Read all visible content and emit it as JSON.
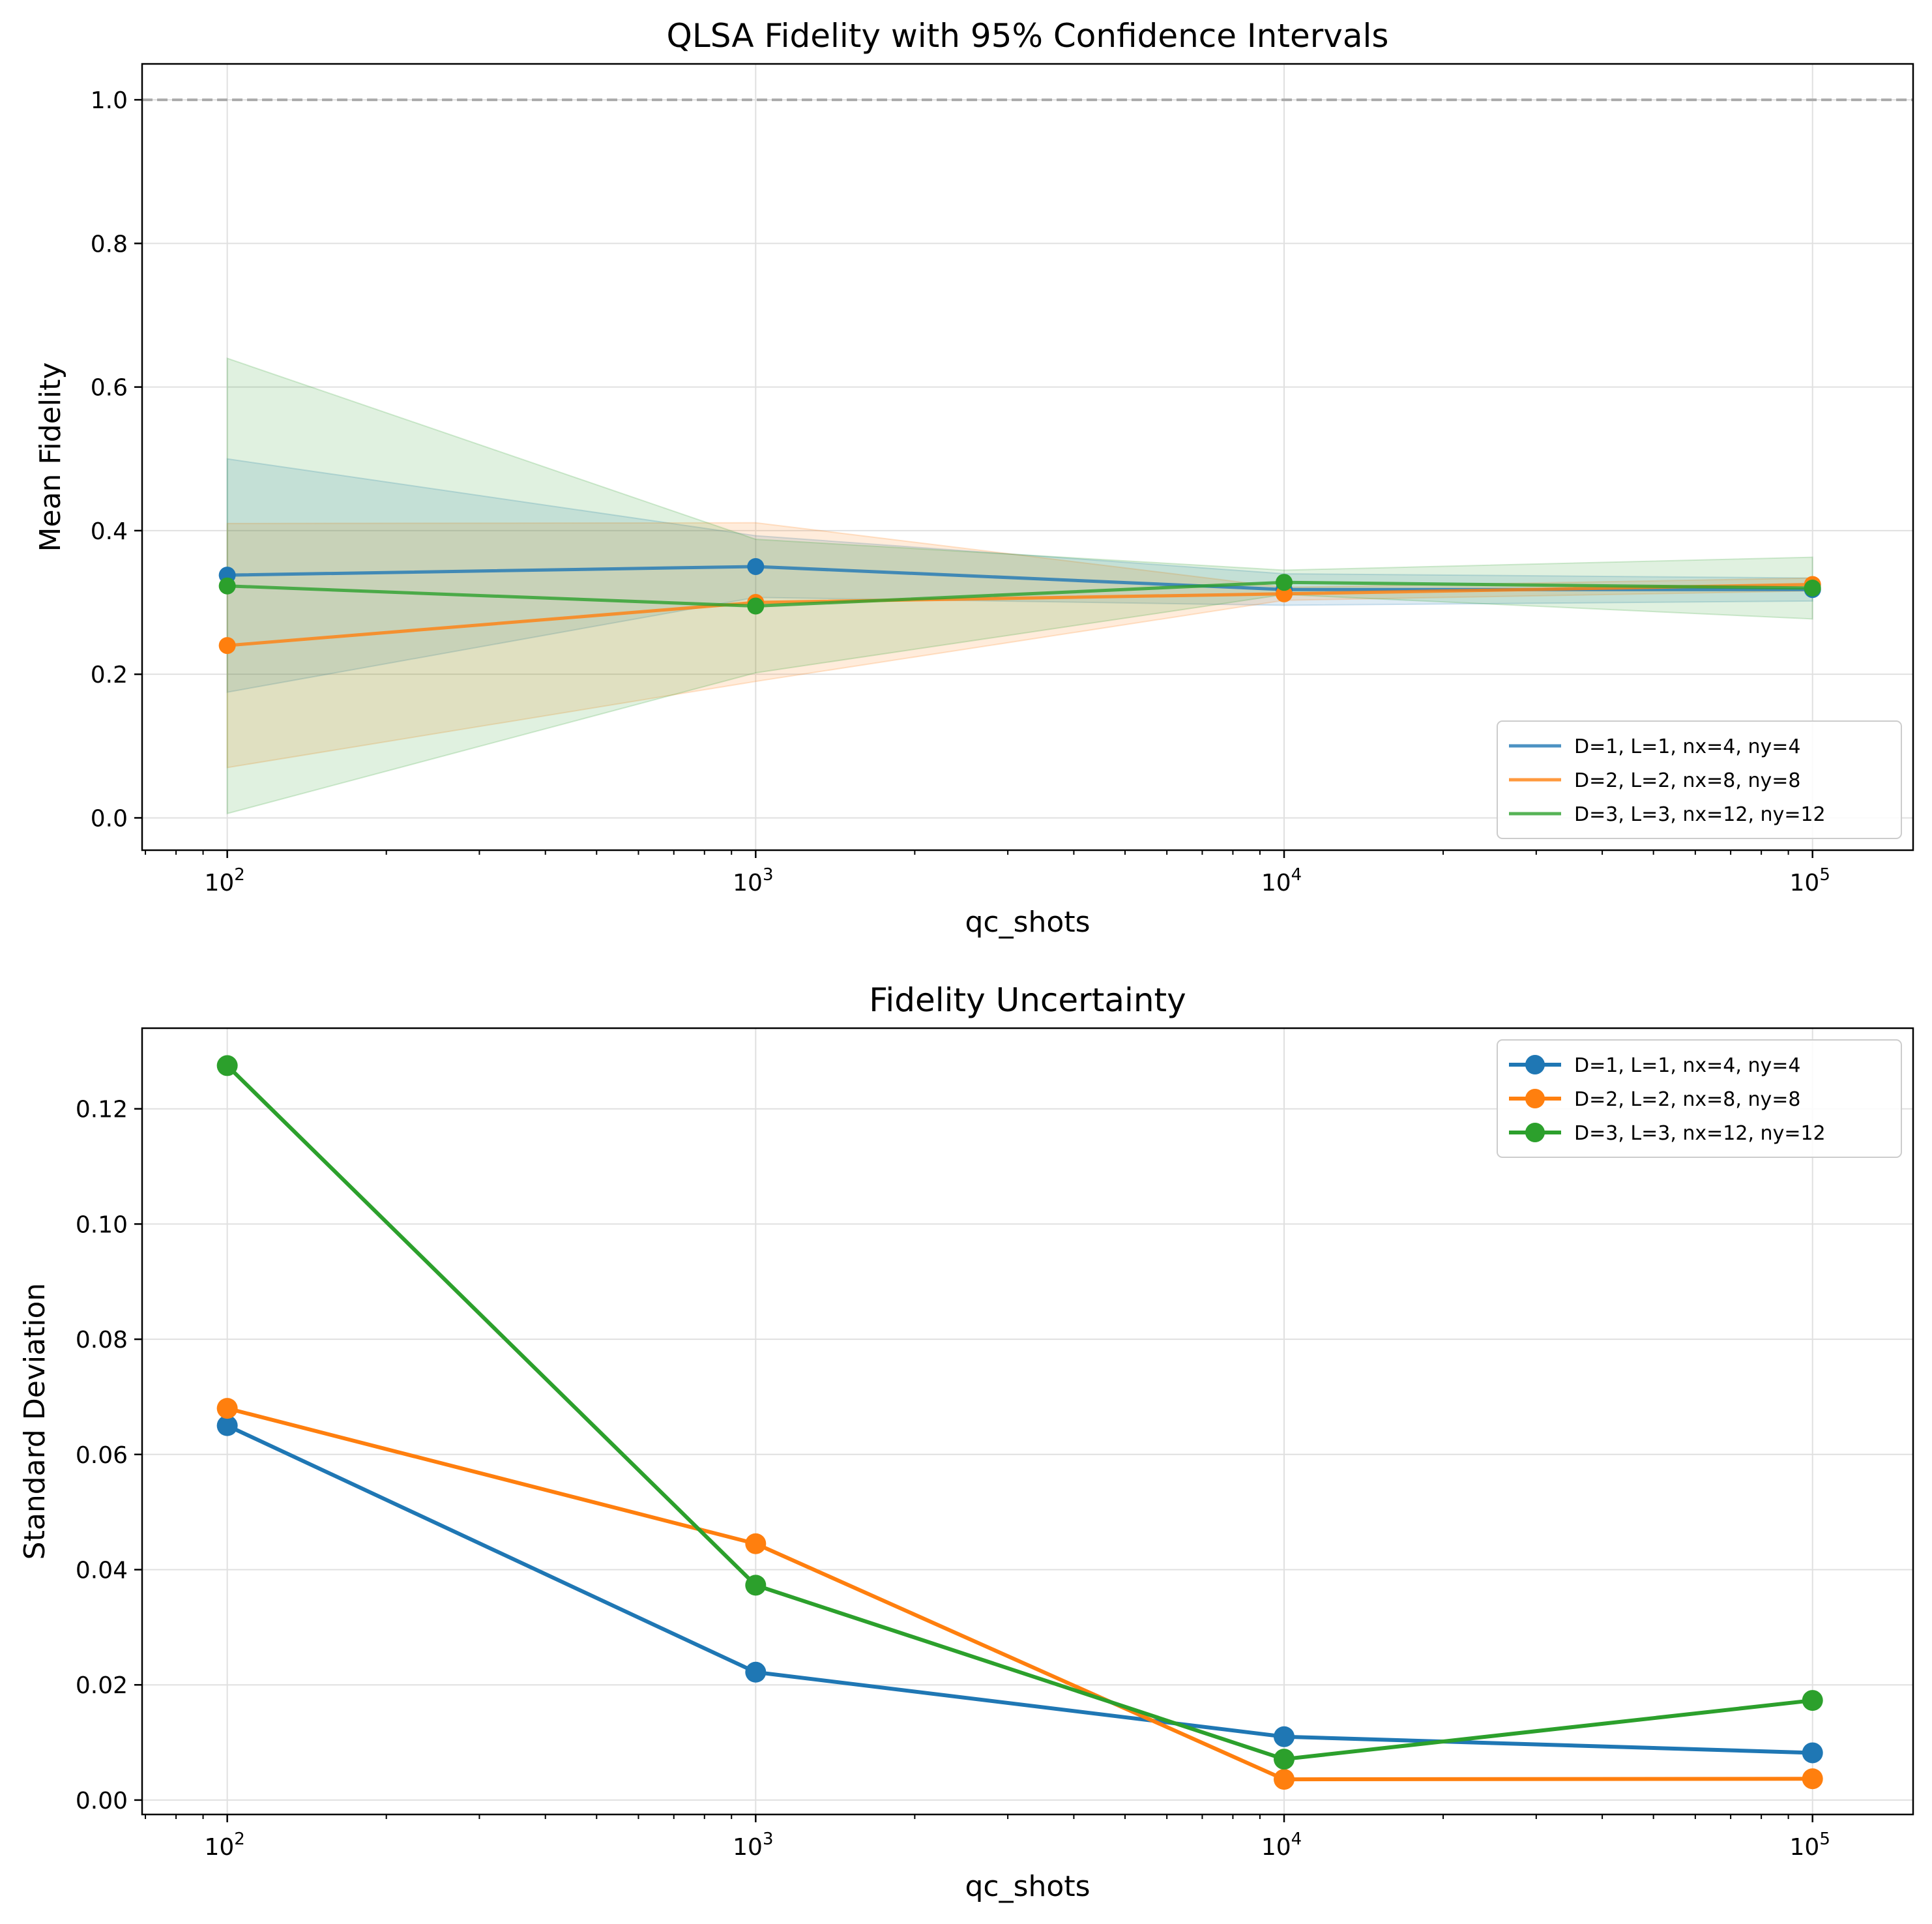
{
  "colors": {
    "blue": "#1f77b4",
    "orange": "#ff7f0e",
    "green": "#2ca02c",
    "reference_line": "#aaaaaa",
    "grid": "#e0e0e0"
  },
  "chart_data": [
    {
      "type": "line",
      "title": "QLSA Fidelity with 95% Confidence Intervals",
      "xlabel": "qc_shots",
      "ylabel": "Mean Fidelity",
      "xscale": "log",
      "x": [
        100,
        1000,
        10000,
        100000
      ],
      "xlim": [
        69,
        155000
      ],
      "ylim": [
        -0.045,
        1.05
      ],
      "yticks": [
        0.0,
        0.2,
        0.4,
        0.6,
        0.8,
        1.0
      ],
      "ytick_labels": [
        "0.0",
        "0.2",
        "0.4",
        "0.6",
        "0.8",
        "1.0"
      ],
      "xtick_labels": [
        {
          "base": "10",
          "exp": "2"
        },
        {
          "base": "10",
          "exp": "3"
        },
        {
          "base": "10",
          "exp": "4"
        },
        {
          "base": "10",
          "exp": "5"
        }
      ],
      "reference_line": {
        "y": 1.0,
        "style": "dashed"
      },
      "grid": true,
      "legend": "lower-right",
      "series": [
        {
          "name": "D=1, L=1, nx=4, ny=4",
          "color": "#1f77b4",
          "values": [
            0.338,
            0.35,
            0.318,
            0.318
          ],
          "ci_lower": [
            0.175,
            0.307,
            0.296,
            0.302
          ],
          "ci_upper": [
            0.5,
            0.393,
            0.34,
            0.334
          ]
        },
        {
          "name": "D=2, L=2, nx=8, ny=8",
          "color": "#ff7f0e",
          "values": [
            0.24,
            0.3,
            0.312,
            0.325
          ],
          "ci_lower": [
            0.07,
            0.19,
            0.303,
            0.316
          ],
          "ci_upper": [
            0.41,
            0.411,
            0.321,
            0.334
          ]
        },
        {
          "name": "D=3, L=3, nx=12, ny=12",
          "color": "#2ca02c",
          "values": [
            0.323,
            0.295,
            0.328,
            0.32
          ],
          "ci_lower": [
            0.006,
            0.202,
            0.311,
            0.277
          ],
          "ci_upper": [
            0.64,
            0.388,
            0.345,
            0.363
          ]
        }
      ]
    },
    {
      "type": "line",
      "title": "Fidelity Uncertainty",
      "xlabel": "qc_shots",
      "ylabel": "Standard Deviation",
      "xscale": "log",
      "x": [
        100,
        1000,
        10000,
        100000
      ],
      "xlim": [
        69,
        155000
      ],
      "ylim": [
        -0.0025,
        0.134
      ],
      "yticks": [
        0.0,
        0.02,
        0.04,
        0.06,
        0.08,
        0.1,
        0.12
      ],
      "ytick_labels": [
        "0.00",
        "0.02",
        "0.04",
        "0.06",
        "0.08",
        "0.10",
        "0.12"
      ],
      "xtick_labels": [
        {
          "base": "10",
          "exp": "2"
        },
        {
          "base": "10",
          "exp": "3"
        },
        {
          "base": "10",
          "exp": "4"
        },
        {
          "base": "10",
          "exp": "5"
        }
      ],
      "grid": true,
      "legend": "upper-right",
      "series": [
        {
          "name": "D=1, L=1, nx=4, ny=4",
          "color": "#1f77b4",
          "values": [
            0.065,
            0.0222,
            0.011,
            0.0082
          ]
        },
        {
          "name": "D=2, L=2, nx=8, ny=8",
          "color": "#ff7f0e",
          "values": [
            0.068,
            0.0445,
            0.0036,
            0.0037
          ]
        },
        {
          "name": "D=3, L=3, nx=12, ny=12",
          "color": "#2ca02c",
          "values": [
            0.1275,
            0.0373,
            0.0071,
            0.0173
          ]
        }
      ]
    }
  ]
}
